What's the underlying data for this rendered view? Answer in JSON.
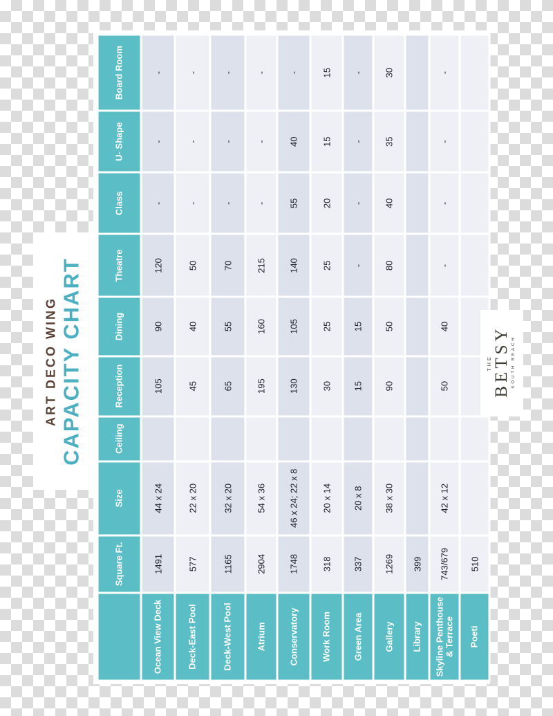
{
  "title": {
    "line1": "ART DECO WING",
    "line2": "CAPACITY CHART"
  },
  "logo": {
    "the": "THE",
    "name": "BETSY",
    "sub": "SOUTH BEACH"
  },
  "colors": {
    "header_teal": "#5bbdc5",
    "header_text": "#ffffff",
    "row_dark": "#dce1eb",
    "row_light": "#eef0f5",
    "cell_text": "#20202c",
    "subtitle_brown": "#5a4036",
    "title_teal": "#4db0c2",
    "logo_ink": "#3e3e35",
    "checker_gray": "#dcdcdc"
  },
  "chart_data": {
    "type": "table",
    "title": "CAPACITY CHART",
    "subtitle": "ART DECO WING",
    "layout_hint": "entire table rotated 90 degrees counterclockwise; header labels read bottom-to-top",
    "columns": [
      "",
      "Square Ft.",
      "Size",
      "Ceiling",
      "Reception",
      "Dining",
      "Theatre",
      "Class",
      "U- Shape",
      "Board Room"
    ],
    "rows": [
      {
        "name": "Ocean View Deck",
        "shade": "dark",
        "values": [
          "1491",
          "44 x 24",
          "",
          "105",
          "90",
          "120",
          "-",
          "-",
          "-"
        ]
      },
      {
        "name": "Deck-East Pool",
        "shade": "light",
        "values": [
          "577",
          "22 x 20",
          "",
          "45",
          "40",
          "50",
          "-",
          "-",
          "-"
        ]
      },
      {
        "name": "Deck-West Pool",
        "shade": "dark",
        "values": [
          "1165",
          "32 x 20",
          "",
          "65",
          "55",
          "70",
          "-",
          "-",
          "-"
        ]
      },
      {
        "name": "Atrium",
        "shade": "light",
        "values": [
          "2904",
          "54 x 36",
          "",
          "195",
          "160",
          "215",
          "-",
          "-",
          "-"
        ]
      },
      {
        "name": "Conservatory",
        "shade": "dark",
        "values": [
          "1748",
          "46 x 24; 22 x 8",
          "",
          "130",
          "105",
          "140",
          "55",
          "40",
          "-"
        ]
      },
      {
        "name": "Work Room",
        "shade": "light",
        "values": [
          "318",
          "20 x 14",
          "",
          "30",
          "25",
          "25",
          "20",
          "15",
          "15"
        ]
      },
      {
        "name": "Green Area",
        "shade": "dark",
        "values": [
          "337",
          "20 x 8",
          "",
          "15",
          "15",
          "-",
          "-",
          "-",
          "-"
        ]
      },
      {
        "name": "Gallery",
        "shade": "light",
        "values": [
          "1269",
          "38 x 30",
          "",
          "90",
          "50",
          "80",
          "40",
          "35",
          "30"
        ]
      },
      {
        "name": "Library",
        "shade": "dark",
        "values": [
          "399",
          "",
          "",
          "",
          "",
          "",
          "",
          "",
          ""
        ]
      },
      {
        "name": "Skyline Penthouse & Terrace",
        "shade": "light",
        "values": [
          "743/679",
          "42 x 12",
          "",
          "50",
          "40",
          "-",
          "-",
          "-",
          "-"
        ]
      },
      {
        "name": "Poeti",
        "shade": "light",
        "values": [
          "510",
          "",
          "",
          "",
          "",
          "",
          "",
          "",
          ""
        ]
      }
    ]
  }
}
